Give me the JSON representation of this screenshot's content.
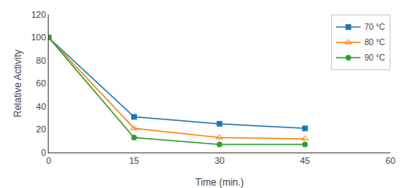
{
  "chart_data": {
    "type": "line",
    "xlabel": "Time (min.)",
    "ylabel": "Relative Activity",
    "x": [
      0,
      15,
      30,
      45
    ],
    "series": [
      {
        "name": "70 °C",
        "values": [
          100,
          31,
          25,
          21
        ],
        "marker": "square"
      },
      {
        "name": "80 °C",
        "values": [
          100,
          21,
          13,
          12
        ],
        "marker": "triangle-up-open"
      },
      {
        "name": "90 °C",
        "values": [
          100,
          13,
          7,
          7
        ],
        "marker": "circle"
      }
    ],
    "xlim": [
      0,
      60
    ],
    "ylim": [
      0,
      120
    ],
    "xticks": [
      0,
      15,
      30,
      45,
      60
    ],
    "yticks": [
      0,
      20,
      40,
      60,
      80,
      100,
      120
    ],
    "legend": "upper right",
    "grid": false
  }
}
